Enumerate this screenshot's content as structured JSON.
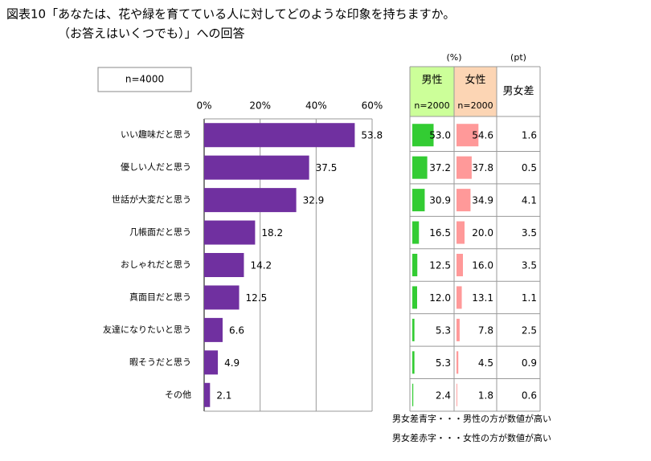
{
  "title": [
    "図表10「あなたは、花や緑を育てている人に対してどのような印象を持ちますか。",
    "（お答えはいくつでも）」への回答"
  ],
  "chart_data": {
    "type": "bar",
    "sample": "n=4000",
    "categories": [
      "いい趣味だと思う",
      "優しい人だと思う",
      "世話が大変だと思う",
      "几帳面だと思う",
      "おしゃれだと思う",
      "真面目だと思う",
      "友達になりたいと思う",
      "暇そうだと思う",
      "その他"
    ],
    "values": [
      53.8,
      37.5,
      32.9,
      18.2,
      14.2,
      12.5,
      6.6,
      4.9,
      2.1
    ],
    "color": "#7030a0",
    "xlim": [
      0,
      60
    ],
    "xticks": [
      {
        "value": 0,
        "label": "0%"
      },
      {
        "value": 20,
        "label": "20%"
      },
      {
        "value": 40,
        "label": "40%"
      },
      {
        "value": 60,
        "label": "60%"
      }
    ],
    "grid": true
  },
  "table": {
    "units": [
      "(%)",
      "(pt)"
    ],
    "columns": [
      {
        "name": "男性",
        "n": "n=2000",
        "header_color": "#ccff99",
        "color": "#33cc33",
        "values": [
          53.0,
          37.2,
          30.9,
          16.5,
          12.5,
          12.0,
          5.3,
          5.3,
          2.4
        ],
        "value_labels": [
          "53.0",
          "37.2",
          "30.9",
          "16.5",
          "12.5",
          "12.0",
          "5.3",
          "5.3",
          "2.4"
        ]
      },
      {
        "name": "女性",
        "n": "n=2000",
        "header_color": "#fcd5b4",
        "color": "#ff9999",
        "values": [
          54.6,
          37.8,
          34.9,
          20.0,
          16.0,
          13.1,
          7.8,
          4.5,
          1.8
        ],
        "value_labels": [
          "54.6",
          "37.8",
          "34.9",
          "20.0",
          "16.0",
          "13.1",
          "7.8",
          "4.5",
          "1.8"
        ]
      }
    ],
    "diff": {
      "name": "男女差",
      "values": [
        1.6,
        0.5,
        4.1,
        3.5,
        3.5,
        1.1,
        2.5,
        0.9,
        0.6
      ]
    }
  },
  "notes": [
    {
      "text": "男女差青字・・・男性の方が数値が高い",
      "color": "#0070c0"
    },
    {
      "text": "男女差赤字・・・女性の方が数値が高い",
      "color": "#ff0000"
    }
  ]
}
